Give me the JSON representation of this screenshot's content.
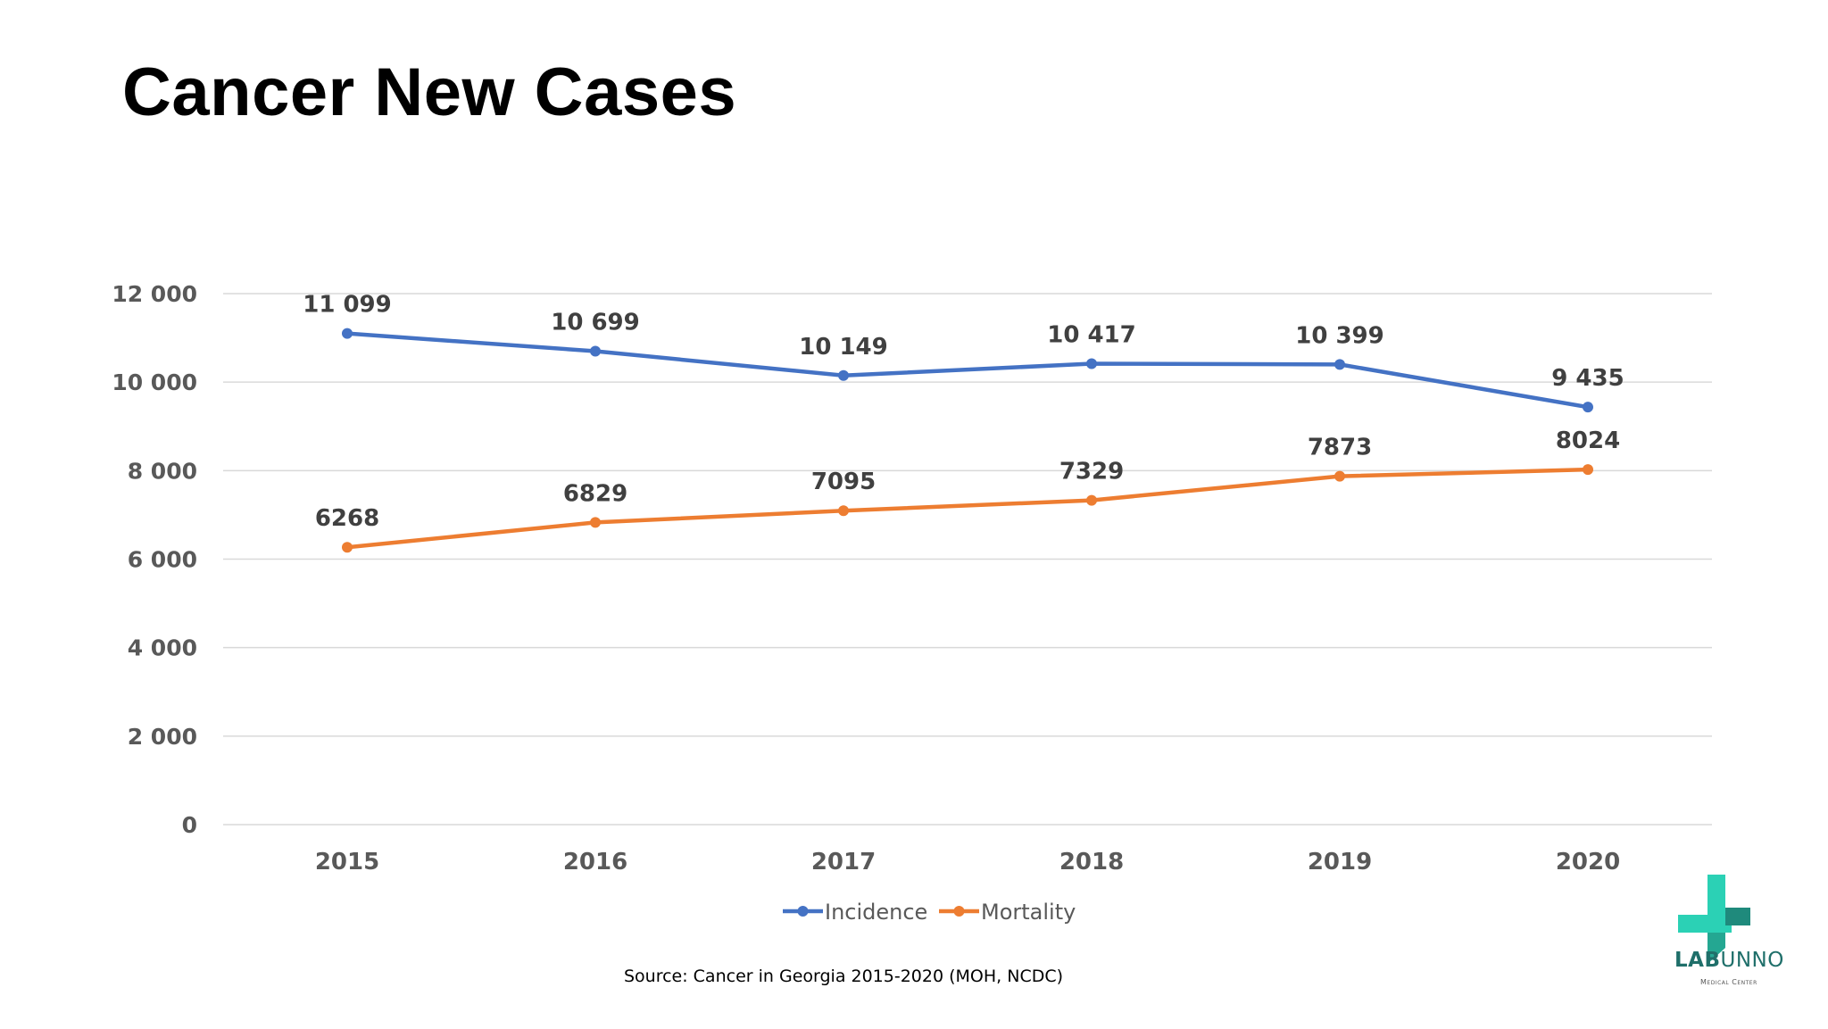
{
  "title": "Cancer New Cases",
  "source": "Source: Cancer in Georgia 2015-2020 (MOH, NCDC)",
  "logo": {
    "brand_bold": "LAB",
    "brand_light": "UNNO",
    "subtitle": "Medical Center",
    "colors": [
      "#2bd1b5",
      "#1f8a7c"
    ]
  },
  "chart_data": {
    "type": "line",
    "categories": [
      "2015",
      "2016",
      "2017",
      "2018",
      "2019",
      "2020"
    ],
    "series": [
      {
        "name": "Incidence",
        "values": [
          11099,
          10699,
          10149,
          10417,
          10399,
          9435
        ],
        "labels": [
          "11 099",
          "10 699",
          "10 149",
          "10 417",
          "10 399",
          "9 435"
        ],
        "color": "#4472c4"
      },
      {
        "name": "Mortality",
        "values": [
          6268,
          6829,
          7095,
          7329,
          7873,
          8024
        ],
        "labels": [
          "6268",
          "6829",
          "7095",
          "7329",
          "7873",
          "8024"
        ],
        "color": "#ed7d31"
      }
    ],
    "ylim": [
      0,
      12000
    ],
    "yticks": [
      0,
      2000,
      4000,
      6000,
      8000,
      10000,
      12000
    ],
    "ytick_labels": [
      "0",
      "2 000",
      "4 000",
      "6 000",
      "8 000",
      "10 000",
      "12 000"
    ],
    "grid": true,
    "legend": "bottom"
  }
}
